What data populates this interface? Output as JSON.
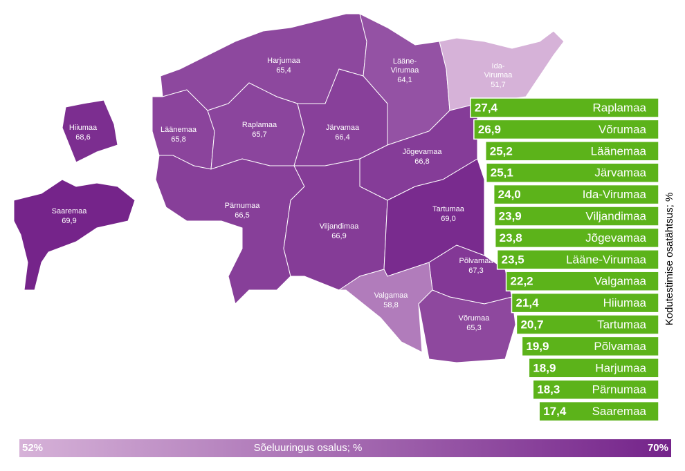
{
  "chart_data": [
    {
      "type": "map",
      "regions": [
        {
          "name": "Harjumaa",
          "value": 65.4,
          "value_label": "65,4"
        },
        {
          "name": "Läänemaa",
          "value": 65.8,
          "value_label": "65,8"
        },
        {
          "name": "Raplamaa",
          "value": 65.7,
          "value_label": "65,7"
        },
        {
          "name": "Järvamaa",
          "value": 66.4,
          "value_label": "66,4"
        },
        {
          "name": "Lääne-Virumaa",
          "value": 64.1,
          "value_label": "64,1"
        },
        {
          "name": "Ida-Virumaa",
          "value": 51.7,
          "value_label": "51,7"
        },
        {
          "name": "Jõgevamaa",
          "value": 66.8,
          "value_label": "66,8"
        },
        {
          "name": "Pärnumaa",
          "value": 66.5,
          "value_label": "66,5"
        },
        {
          "name": "Viljandimaa",
          "value": 66.9,
          "value_label": "66,9"
        },
        {
          "name": "Tartumaa",
          "value": 69.0,
          "value_label": "69,0"
        },
        {
          "name": "Põlvamaa",
          "value": 67.3,
          "value_label": "67,3"
        },
        {
          "name": "Valgamaa",
          "value": 58.8,
          "value_label": "58,8"
        },
        {
          "name": "Võrumaa",
          "value": 65.3,
          "value_label": "65,3"
        },
        {
          "name": "Hiiumaa",
          "value": 68.6,
          "value_label": "68,6"
        },
        {
          "name": "Saaremaa",
          "value": 69.9,
          "value_label": "69,9"
        }
      ],
      "colorbar": {
        "label": "Sõeluuringus osalus; %",
        "ticks": [
          {
            "value": 52,
            "label": "52%"
          },
          {
            "value": 70,
            "label": "70%"
          }
        ],
        "colors": [
          "#d6b2d8",
          "#74238a"
        ]
      }
    },
    {
      "type": "bar",
      "orientation": "horizontal",
      "ylabel": "Kodutestimise osatähtsus; %",
      "color": "#5cb31a",
      "categories": [
        "Raplamaa",
        "Võrumaa",
        "Läänemaa",
        "Järvamaa",
        "Ida-Virumaa",
        "Viljandimaa",
        "Jõgevamaa",
        "Lääne-Virumaa",
        "Valgamaa",
        "Hiiumaa",
        "Tartumaa",
        "Põlvamaa",
        "Harjumaa",
        "Pärnumaa",
        "Saaremaa"
      ],
      "values": [
        27.4,
        26.9,
        25.2,
        25.1,
        24.0,
        23.9,
        23.8,
        23.5,
        22.2,
        21.4,
        20.7,
        19.9,
        18.9,
        18.3,
        17.4
      ],
      "value_labels": [
        "27,4",
        "26,9",
        "25,2",
        "25,1",
        "24,0",
        "23,9",
        "23,8",
        "23,5",
        "22,2",
        "21,4",
        "20,7",
        "19,9",
        "18,9",
        "18,3",
        "17,4"
      ]
    }
  ]
}
